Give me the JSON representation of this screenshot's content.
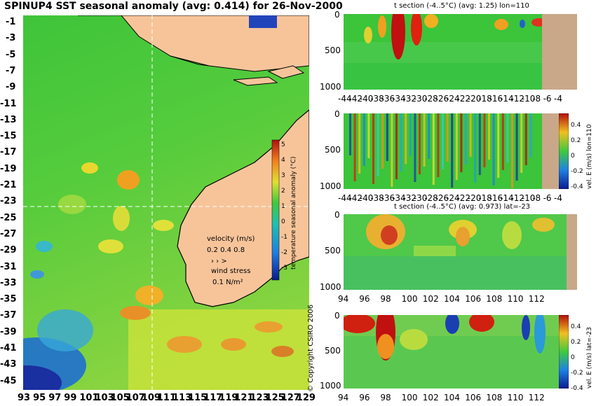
{
  "map": {
    "title": "SPINUP4 SST seasonal anomaly (avg: 0.414) for 26-Nov-2000",
    "y_ticks": [
      "-1",
      "-3",
      "-5",
      "-7",
      "-9",
      "-11",
      "-13",
      "-15",
      "-17",
      "-19",
      "-21",
      "-23",
      "-25",
      "-27",
      "-29",
      "-31",
      "-33",
      "-35",
      "-37",
      "-39",
      "-41",
      "-43",
      "-45"
    ],
    "x_ticks": [
      "93",
      "95",
      "97",
      "99",
      "101",
      "103",
      "105",
      "107",
      "109",
      "111",
      "113",
      "115",
      "117",
      "119",
      "121",
      "123",
      "125",
      "127",
      "129"
    ],
    "colorbar_label": "temperature seasonal anomaly (°C)",
    "colorbar_ticks": [
      "5",
      "4",
      "3",
      "2",
      "1",
      "0",
      "-1",
      "-2",
      "-3",
      "-4"
    ],
    "velocity_title": "velocity (m/s)",
    "velocity_scale": "0.2 0.4 0.8",
    "wind_title": "wind stress",
    "wind_scale": "0.1 N/m²"
  },
  "panels": {
    "p1": {
      "title": "t section (-4..5°C) (avg: 1.25) lon=110",
      "y_ticks": [
        "0",
        "500",
        "1000"
      ],
      "x_ticks": [
        "-44",
        "-42",
        "-40",
        "-38",
        "-36",
        "-34",
        "-32",
        "-30",
        "-28",
        "-26",
        "-24",
        "-22",
        "-20",
        "-18",
        "-16",
        "-14",
        "-12",
        "-10",
        "-8",
        "-6",
        "-4"
      ]
    },
    "p2": {
      "title": "",
      "y_ticks": [
        "0",
        "500",
        "1000"
      ],
      "x_ticks": [
        "-44",
        "-42",
        "-40",
        "-38",
        "-36",
        "-34",
        "-32",
        "-30",
        "-28",
        "-26",
        "-24",
        "-22",
        "-20",
        "-18",
        "-16",
        "-14",
        "-12",
        "-10",
        "-8",
        "-6",
        "-4"
      ],
      "cb_label": "vel. E (m/s) lon=110",
      "cb_ticks": [
        "0.4",
        "0.2",
        "0",
        "-0.2",
        "-0.4"
      ]
    },
    "p3": {
      "title": "t section (-4..5°C) (avg: 0.973) lat=-23",
      "y_ticks": [
        "0",
        "500",
        "1000"
      ],
      "x_ticks": [
        "94",
        "96",
        "98",
        "100",
        "102",
        "104",
        "106",
        "108",
        "110",
        "112"
      ]
    },
    "p4": {
      "y_ticks": [
        "0",
        "500",
        "1000"
      ],
      "x_ticks": [
        "94",
        "96",
        "98",
        "100",
        "102",
        "104",
        "106",
        "108",
        "110",
        "112"
      ],
      "cb_label": "vel. E (m/s) lat=-23",
      "cb_ticks": [
        "0.4",
        "0.2",
        "0",
        "-0.2",
        "-0.4"
      ]
    }
  },
  "copyright": "© Copyright CSIRO 2006",
  "chart_data": [
    {
      "type": "heatmap",
      "title": "SPINUP4 SST seasonal anomaly (avg: 0.414) for 26-Nov-2000",
      "xlabel": "",
      "ylabel": "",
      "xlim": [
        93,
        130
      ],
      "ylim": [
        -45,
        0
      ],
      "colorbar": {
        "label": "temperature seasonal anomaly (°C)",
        "range": [
          -4,
          5
        ]
      },
      "average": 0.414,
      "date": "26-Nov-2000"
    },
    {
      "type": "heatmap",
      "title": "t section (-4..5°C) (avg: 1.25) lon=110",
      "xlim": [
        -45,
        -3
      ],
      "ylim": [
        1050,
        0
      ],
      "average": 1.25
    },
    {
      "type": "heatmap",
      "title": "",
      "xlim": [
        -45,
        -3
      ],
      "ylim": [
        1050,
        0
      ],
      "colorbar": {
        "label": "vel. E (m/s) lon=110",
        "range": [
          -0.4,
          0.4
        ]
      }
    },
    {
      "type": "heatmap",
      "title": "t section (-4..5°C) (avg: 0.973) lat=-23",
      "xlim": [
        93,
        114
      ],
      "ylim": [
        1050,
        0
      ],
      "average": 0.973
    },
    {
      "type": "heatmap",
      "title": "",
      "xlim": [
        93,
        114
      ],
      "ylim": [
        1050,
        0
      ],
      "colorbar": {
        "label": "vel. E (m/s) lat=-23",
        "range": [
          -0.4,
          0.4
        ]
      }
    }
  ]
}
